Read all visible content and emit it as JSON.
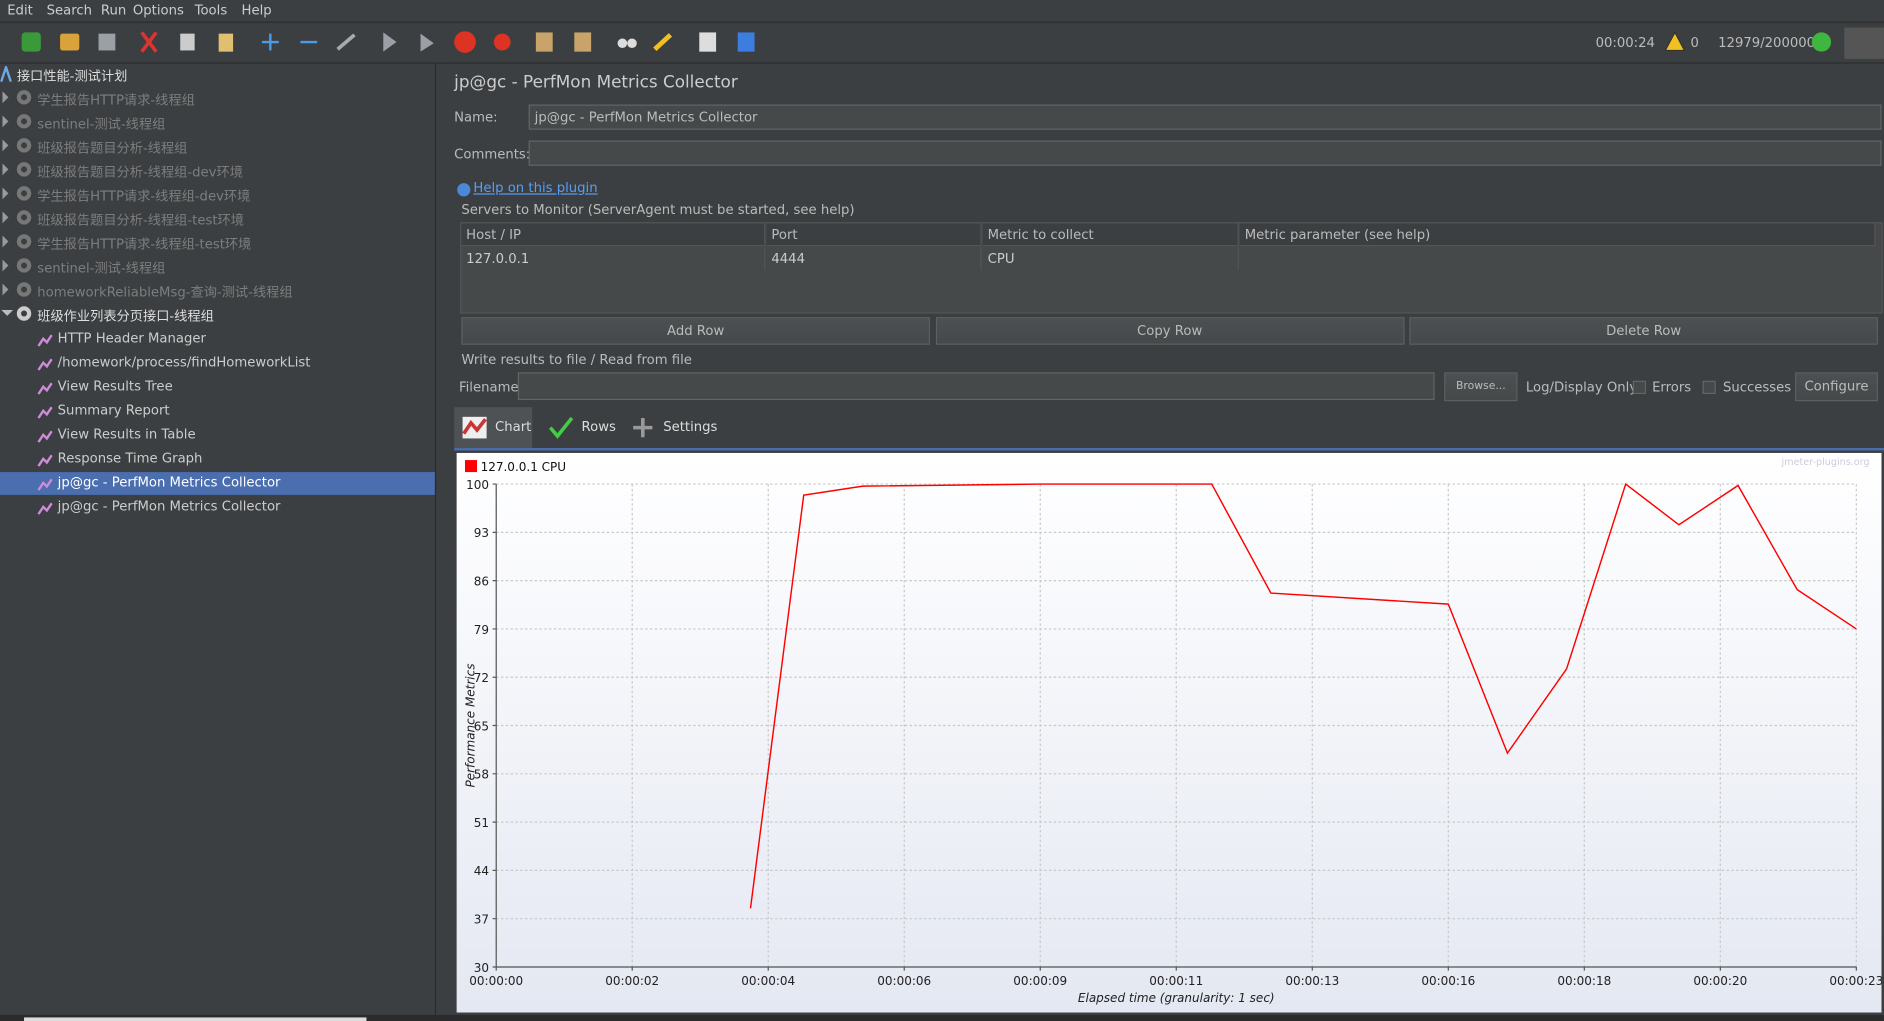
{
  "menu": [
    "Edit",
    "Search",
    "Run",
    "Options",
    "Tools",
    "Help"
  ],
  "status": {
    "elapsed": "00:00:24",
    "warnings": "0",
    "threads": "12979/200000"
  },
  "tree": {
    "root": "接口性能-测试计划",
    "thread_groups": [
      "学生报告HTTP请求-线程组",
      "sentinel-测试-线程组",
      "班级报告题目分析-线程组",
      "班级报告题目分析-线程组-dev环境",
      "学生报告HTTP请求-线程组-dev环境",
      "班级报告题目分析-线程组-test环境",
      "学生报告HTTP请求-线程组-test环境",
      "sentinel-测试-线程组",
      "homeworkReliableMsg-查询-测试-线程组"
    ],
    "open_group": "班级作业列表分页接口-线程组",
    "open_group_items": [
      "HTTP Header Manager",
      "/homework/process/findHomeworkList",
      "View Results Tree",
      "Summary Report",
      "View Results in Table",
      "Response Time Graph",
      "jp@gc - PerfMon Metrics Collector",
      "jp@gc - PerfMon Metrics Collector"
    ],
    "selected_item": 6
  },
  "panel": {
    "title": "jp@gc - PerfMon Metrics Collector",
    "name_label": "Name:",
    "name_value": "jp@gc - PerfMon Metrics Collector",
    "comments_label": "Comments:",
    "help_link": "Help on this plugin",
    "servers_label": "Servers to Monitor (ServerAgent must be started, see help)",
    "table": {
      "columns": [
        "Host / IP",
        "Port",
        "Metric to collect",
        "Metric parameter (see help)"
      ],
      "rows": [
        [
          "127.0.0.1",
          "4444",
          "CPU"
        ]
      ]
    },
    "buttons": [
      "Add Row",
      "Copy Row",
      "Delete Row"
    ],
    "write_label": "Write results to file / Read from file",
    "filename_label": "Filename",
    "browse": "Browse...",
    "log_label": "Log/Display Only:",
    "errors": "Errors",
    "successes": "Successes",
    "configure": "Configure",
    "tabs": [
      "Chart",
      "Rows",
      "Settings"
    ],
    "watermark": "jmeter-plugins.org"
  },
  "chart_data": {
    "type": "line",
    "ylabel": "Performance Metrics",
    "xlabel": "Elapsed time (granularity: 1 sec)",
    "x": [
      4.3,
      5.2,
      6.2,
      9.2,
      12.1,
      13.1,
      16.1,
      17.1,
      18.1,
      19.1,
      20.0,
      21.0,
      22.0,
      23.0
    ],
    "series": [
      {
        "name": "127.0.0.1 CPU",
        "color": "#ff0000",
        "values": [
          38.5,
          98.4,
          99.7,
          100,
          100,
          84.2,
          82.6,
          61,
          73.2,
          100,
          94.1,
          99.8,
          84.7,
          79
        ]
      }
    ],
    "xlim": [
      0,
      23
    ],
    "ylim": [
      30,
      100
    ],
    "xticks": [
      {
        "value": 0,
        "label": "00:00:00"
      },
      {
        "value": 2.3,
        "label": "00:00:02"
      },
      {
        "value": 4.6,
        "label": "00:00:04"
      },
      {
        "value": 6.9,
        "label": "00:00:06"
      },
      {
        "value": 9.2,
        "label": "00:00:09"
      },
      {
        "value": 11.5,
        "label": "00:00:11"
      },
      {
        "value": 13.8,
        "label": "00:00:13"
      },
      {
        "value": 16.1,
        "label": "00:00:16"
      },
      {
        "value": 18.4,
        "label": "00:00:18"
      },
      {
        "value": 20.7,
        "label": "00:00:20"
      },
      {
        "value": 23,
        "label": "00:00:23"
      }
    ],
    "yticks": [
      30,
      37,
      44,
      51,
      58,
      65,
      72,
      79,
      86,
      93,
      100
    ],
    "grid": true,
    "legend": "top-left"
  }
}
